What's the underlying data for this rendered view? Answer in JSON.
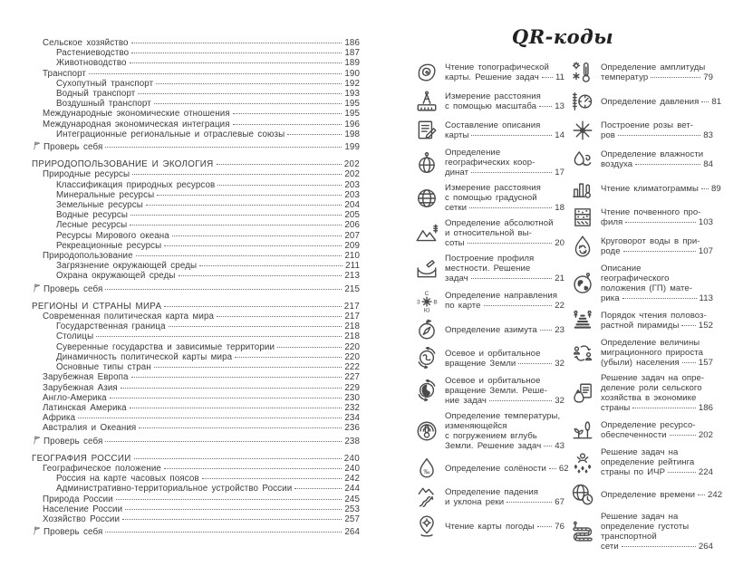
{
  "colors": {
    "ink": "#3c3c3c",
    "paper": "#ffffff"
  },
  "toc": {
    "items": [
      {
        "label": "Сельское хозяйство",
        "page": "186",
        "level": "l1"
      },
      {
        "label": "Растениеводство",
        "page": "187",
        "level": "l2"
      },
      {
        "label": "Животноводство",
        "page": "189",
        "level": "l2"
      },
      {
        "label": "Транспорт",
        "page": "190",
        "level": "l1"
      },
      {
        "label": "Сухопутный транспорт",
        "page": "192",
        "level": "l2"
      },
      {
        "label": "Водный транспорт",
        "page": "193",
        "level": "l2"
      },
      {
        "label": "Воздушный транспорт",
        "page": "195",
        "level": "l2"
      },
      {
        "label": "Международные экономические отношения",
        "page": "195",
        "level": "l1"
      },
      {
        "label": "Международная экономическая интеграция",
        "page": "196",
        "level": "l1"
      },
      {
        "label": "Интеграционные региональные и отраслевые союзы",
        "page": "198",
        "level": "l2"
      },
      {
        "label": "Проверь себя",
        "page": "199",
        "level": "check",
        "icon": "check-flag-icon"
      },
      {
        "label": "ПРИРОДОПОЛЬЗОВАНИЕ И ЭКОЛОГИЯ",
        "page": "202",
        "level": "chapter"
      },
      {
        "label": "Природные ресурсы",
        "page": "202",
        "level": "l1"
      },
      {
        "label": "Классификация природных ресурсов",
        "page": "203",
        "level": "l2"
      },
      {
        "label": "Минеральные ресурсы",
        "page": "203",
        "level": "l2"
      },
      {
        "label": "Земельные ресурсы",
        "page": "204",
        "level": "l2"
      },
      {
        "label": "Водные ресурсы",
        "page": "205",
        "level": "l2"
      },
      {
        "label": "Лесные ресурсы",
        "page": "206",
        "level": "l2"
      },
      {
        "label": "Ресурсы Мирового океана",
        "page": "207",
        "level": "l2"
      },
      {
        "label": "Рекреационные ресурсы",
        "page": "209",
        "level": "l2"
      },
      {
        "label": "Природопользование",
        "page": "210",
        "level": "l1"
      },
      {
        "label": "Загрязнение окружающей среды",
        "page": "211",
        "level": "l2"
      },
      {
        "label": "Охрана окружающей среды",
        "page": "213",
        "level": "l2"
      },
      {
        "label": "Проверь себя",
        "page": "215",
        "level": "check",
        "icon": "check-flag-icon"
      },
      {
        "label": "РЕГИОНЫ И СТРАНЫ МИРА",
        "page": "217",
        "level": "chapter"
      },
      {
        "label": "Современная политическая карта мира",
        "page": "217",
        "level": "l1"
      },
      {
        "label": "Государственная граница",
        "page": "218",
        "level": "l2"
      },
      {
        "label": "Столицы",
        "page": "218",
        "level": "l2"
      },
      {
        "label": "Суверенные государства и зависимые территории",
        "page": "220",
        "level": "l2"
      },
      {
        "label": "Динамичность политической карты мира",
        "page": "220",
        "level": "l2"
      },
      {
        "label": "Основные типы стран",
        "page": "222",
        "level": "l2"
      },
      {
        "label": "Зарубежная Европа",
        "page": "227",
        "level": "l1"
      },
      {
        "label": "Зарубежная Азия",
        "page": "229",
        "level": "l1"
      },
      {
        "label": "Англо-Америка",
        "page": "230",
        "level": "l1"
      },
      {
        "label": "Латинская Америка",
        "page": "232",
        "level": "l1"
      },
      {
        "label": "Африка",
        "page": "234",
        "level": "l1"
      },
      {
        "label": "Австралия и Океания",
        "page": "236",
        "level": "l1"
      },
      {
        "label": "Проверь себя",
        "page": "238",
        "level": "check",
        "icon": "check-flag-icon"
      },
      {
        "label": "ГЕОГРАФИЯ РОССИИ",
        "page": "240",
        "level": "chapter"
      },
      {
        "label": "Географическое положение",
        "page": "240",
        "level": "l1"
      },
      {
        "label": "Россия на карте часовых поясов",
        "page": "242",
        "level": "l2"
      },
      {
        "label": "Административно-территориальное устройство России",
        "page": "244",
        "level": "l2"
      },
      {
        "label": "Природа России",
        "page": "245",
        "level": "l1"
      },
      {
        "label": "Население России",
        "page": "253",
        "level": "l1"
      },
      {
        "label": "Хозяйство России",
        "page": "257",
        "level": "l1"
      },
      {
        "label": "Проверь себя",
        "page": "264",
        "level": "check",
        "icon": "check-flag-icon"
      }
    ]
  },
  "qr": {
    "title": "QR-коды",
    "col_left": [
      {
        "icon": "topographic-map-icon",
        "lines": [
          "Чтение топографической",
          "карты. Решение задач"
        ],
        "page": "11"
      },
      {
        "icon": "scale-measuring-icon",
        "lines": [
          "Измерение расстояния",
          "с помощью масштаба"
        ],
        "page": "13"
      },
      {
        "icon": "map-description-icon",
        "lines": [
          "Составление описания",
          "карты"
        ],
        "page": "14"
      },
      {
        "icon": "geo-coordinates-icon",
        "lines": [
          "Определение",
          "географических коор-",
          "динат"
        ],
        "page": "17"
      },
      {
        "icon": "graticule-distance-icon",
        "lines": [
          "Измерение расстояния",
          "с помощью градусной",
          "сетки"
        ],
        "page": "18"
      },
      {
        "icon": "elevation-icon",
        "lines": [
          "Определение абсолютной",
          "и относительной вы-",
          "соты"
        ],
        "page": "20"
      },
      {
        "icon": "terrain-profile-icon",
        "lines": [
          "Построение профиля",
          "местности. Решение",
          "задач"
        ],
        "page": "21"
      },
      {
        "icon": "compass-rose-icon",
        "lines": [
          "Определение направления",
          "по карте"
        ],
        "page": "22"
      },
      {
        "icon": "azimuth-icon",
        "lines": [
          "Определение азимута"
        ],
        "page": "23"
      },
      {
        "icon": "earth-rotation-icon",
        "lines": [
          "Осевое и орбитальное",
          "вращение Земли"
        ],
        "page": "32"
      },
      {
        "icon": "earth-rotation-tasks-icon",
        "lines": [
          "Осевое и орбитальное",
          "вращение Земли. Реше-",
          "ние задач"
        ],
        "page": "32"
      },
      {
        "icon": "earth-temperature-icon",
        "lines": [
          "Определение температуры,",
          "изменяющейся",
          "с погружением вглубь",
          "Земли. Решение задач"
        ],
        "page": "43"
      },
      {
        "icon": "salinity-icon",
        "lines": [
          "Определение солёности"
        ],
        "page": "62"
      },
      {
        "icon": "river-slope-icon",
        "lines": [
          "Определение падения",
          "и уклона реки"
        ],
        "page": "67"
      },
      {
        "icon": "weather-map-icon",
        "lines": [
          "Чтение карты погоды"
        ],
        "page": "76"
      }
    ],
    "col_right": [
      {
        "icon": "temperature-amplitude-icon",
        "lines": [
          "Определение амплитуды",
          "температур"
        ],
        "page": "79"
      },
      {
        "icon": "pressure-icon",
        "lines": [
          "Определение давления"
        ],
        "page": "81"
      },
      {
        "icon": "wind-rose-icon",
        "lines": [
          "Построение розы вет-",
          "ров"
        ],
        "page": "83"
      },
      {
        "icon": "humidity-icon",
        "lines": [
          "Определение влажности",
          "воздуха"
        ],
        "page": "84"
      },
      {
        "icon": "climatogram-icon",
        "lines": [
          "Чтение климатограммы"
        ],
        "page": "89"
      },
      {
        "icon": "soil-profile-icon",
        "lines": [
          "Чтение почвенного про-",
          "филя"
        ],
        "page": "103"
      },
      {
        "icon": "water-cycle-icon",
        "lines": [
          "Круговорот воды в при-",
          "роде"
        ],
        "page": "107"
      },
      {
        "icon": "continent-location-icon",
        "lines": [
          "Описание географического",
          "положения (ГП) мате-",
          "рика"
        ],
        "page": "113"
      },
      {
        "icon": "age-sex-pyramid-icon",
        "lines": [
          "Порядок чтения половоз-",
          "растной пирамиды"
        ],
        "page": "152"
      },
      {
        "icon": "migration-icon",
        "lines": [
          "Определение величины",
          "миграционного прироста",
          "(убыли) населения"
        ],
        "page": "157"
      },
      {
        "icon": "agriculture-economy-icon",
        "lines": [
          "Решение задач на опре-",
          "деление роли сельского",
          "хозяйства в экономике",
          "страны"
        ],
        "page": "186"
      },
      {
        "icon": "resource-availability-icon",
        "lines": [
          "Определение ресурсо-",
          "обеспеченности"
        ],
        "page": "202"
      },
      {
        "icon": "hdi-rating-icon",
        "lines": [
          "Решение задач на",
          "определение рейтинга",
          "страны по ИЧР"
        ],
        "page": "224"
      },
      {
        "icon": "time-determination-icon",
        "lines": [
          "Определение времени"
        ],
        "page": "242"
      },
      {
        "icon": "transport-density-icon",
        "lines": [
          "Решение задач на",
          "определение густоты",
          "транспортной",
          "сети"
        ],
        "page": "264"
      }
    ]
  }
}
